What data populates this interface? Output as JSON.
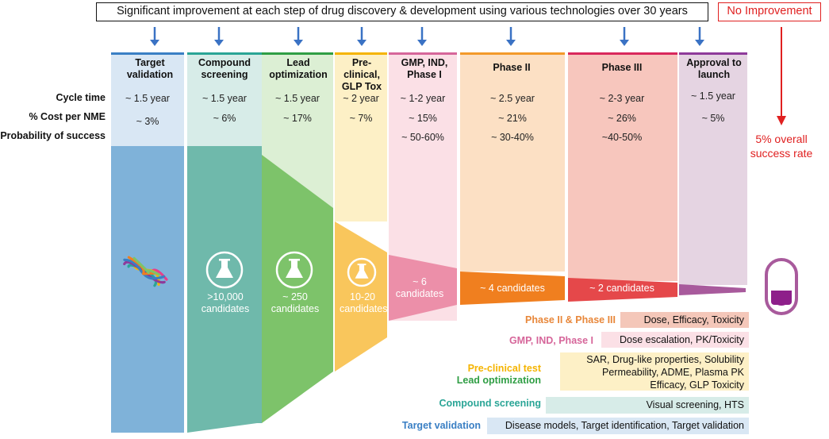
{
  "banner": "Significant improvement at each step of drug discovery & development using various technologies over 30 years",
  "no_improvement": "No Improvement",
  "overall": "5% overall success rate",
  "row_labels": {
    "cycle_time": "Cycle time",
    "cost": "% Cost per NME",
    "probability": "Probability of success"
  },
  "stages": [
    {
      "title": "Target validation",
      "cycle": "~ 1.5 year",
      "cost": "~ 3%",
      "prob": "",
      "candidates": "",
      "color": "#7fb2d9",
      "light": "#d9e7f4",
      "bar": "#3a7fc4"
    },
    {
      "title": "Compound screening",
      "cycle": "~ 1.5 year",
      "cost": "~ 6%",
      "prob": "",
      "candidates": ">10,000 candidates",
      "color": "#6fb9ab",
      "light": "#d7ece8",
      "bar": "#2aa596"
    },
    {
      "title": "Lead optimization",
      "cycle": "~ 1.5 year",
      "cost": "~ 17%",
      "prob": "",
      "candidates": "~ 250 candidates",
      "color": "#7dc36a",
      "light": "#dcefd4",
      "bar": "#2f9e44"
    },
    {
      "title": "Pre-clinical, GLP Tox",
      "cycle": "~ 2 year",
      "cost": "~ 7%",
      "prob": "",
      "candidates": "10-20 candidates",
      "color": "#f9c65c",
      "light": "#fdf0c6",
      "bar": "#f5b400"
    },
    {
      "title": "GMP, IND, Phase I",
      "cycle": "~ 1-2 year",
      "cost": "~ 15%",
      "prob": "~ 50-60%",
      "candidates": "~ 6 candidates",
      "color": "#ec8fa9",
      "light": "#fbe0e6",
      "bar": "#d6669a"
    },
    {
      "title": "Phase II",
      "cycle": "~ 2.5 year",
      "cost": "~ 21%",
      "prob": "~ 30-40%",
      "candidates": "~ 4 candidates",
      "color": "#f07f1f",
      "light": "#fce0c4",
      "bar": "#f39a2a"
    },
    {
      "title": "Phase III",
      "cycle": "~ 2-3 year",
      "cost": "~ 26%",
      "prob": "~40-50%",
      "candidates": "~ 2 candidates",
      "color": "#e5484a",
      "light": "#f7c6bd",
      "bar": "#d9285c"
    },
    {
      "title": "Approval to launch",
      "cycle": "~ 1.5 year",
      "cost": "~ 5%",
      "prob": "",
      "candidates": "",
      "color": "#a85a9c",
      "light": "#e5d4e2",
      "bar": "#8e3a9a"
    }
  ],
  "legend": [
    {
      "label": "Phase II & Phase III",
      "desc": "Dose, Efficacy, Toxicity",
      "label_color": "#e8873a",
      "box_color": "#f4c7b9"
    },
    {
      "label": "GMP, IND, Phase I",
      "desc": "Dose escalation, PK/Toxicity",
      "label_color": "#d6669a",
      "box_color": "#fbe0e6"
    },
    {
      "label": "Pre-clinical test",
      "label2": "Lead optimization",
      "desc": "SAR, Drug-like properties, Solubility",
      "desc2": "Permeability, ADME, Plasma PK",
      "desc3": "Efficacy, GLP Toxicity",
      "label_color": "#f5b400",
      "label2_color": "#2f9e44",
      "box_color": "#fdf0c6"
    },
    {
      "label": "Compound screening",
      "desc": "Visual screening, HTS",
      "label_color": "#2aa596",
      "box_color": "#d7ece8"
    },
    {
      "label": "Target validation",
      "desc": "Disease models, Target identification, Target validation",
      "label_color": "#3a7fc4",
      "box_color": "#d9e7f4"
    }
  ],
  "icons": [
    "protein-structure-icon",
    "flask-icon",
    "pill-capsule-icon",
    "down-arrow-icon"
  ]
}
